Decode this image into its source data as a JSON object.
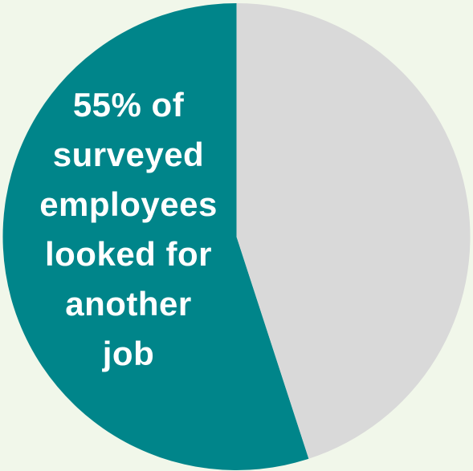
{
  "chart_data": {
    "type": "pie",
    "slices": [
      {
        "name": "looked for another job",
        "value": 55,
        "color": "#00858a"
      },
      {
        "name": "",
        "value": 45,
        "color": "#d9d9d9"
      }
    ],
    "annotation_lines": [
      "55% of",
      "surveyed",
      "employees",
      "looked for",
      "another",
      "job"
    ],
    "title": "",
    "legend": "none"
  },
  "background_color": "#f1f7ea"
}
